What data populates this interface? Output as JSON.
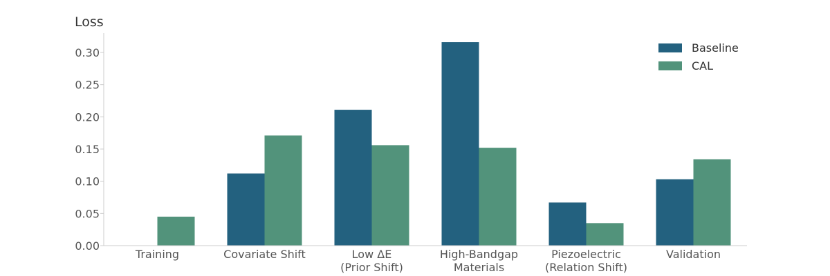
{
  "chart_data": {
    "type": "bar",
    "ylabel": "Loss",
    "categories": [
      [
        "Training"
      ],
      [
        "Covariate Shift"
      ],
      [
        "Low ΔE",
        "(Prior Shift)"
      ],
      [
        "High-Bandgap",
        "Materials"
      ],
      [
        "Piezoelectric",
        "(Relation Shift)"
      ],
      [
        "Validation"
      ]
    ],
    "series": [
      {
        "name": "Baseline",
        "color": "#23617f",
        "values": [
          0.0,
          0.112,
          0.211,
          0.316,
          0.067,
          0.103
        ]
      },
      {
        "name": "CAL",
        "color": "#52937b",
        "values": [
          0.045,
          0.171,
          0.156,
          0.152,
          0.035,
          0.134
        ]
      }
    ],
    "ylim": [
      0,
      0.33
    ],
    "yticks": [
      "0.00",
      "0.05",
      "0.10",
      "0.15",
      "0.20",
      "0.25",
      "0.30"
    ],
    "legend_position": "top-right",
    "grid": false
  }
}
